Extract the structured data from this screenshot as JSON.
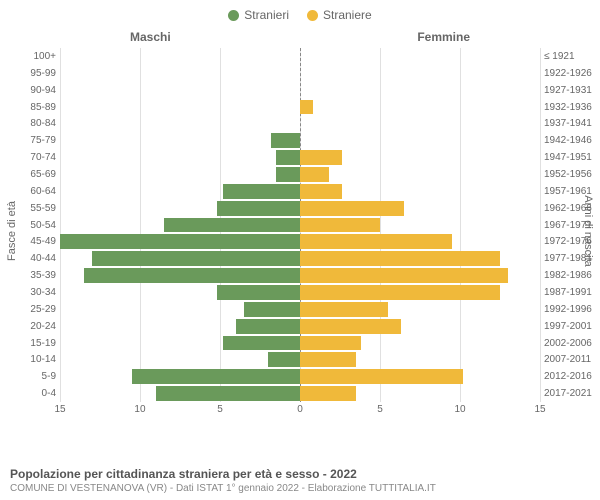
{
  "legend": {
    "male": {
      "label": "Stranieri",
      "color": "#6a9a5b"
    },
    "female": {
      "label": "Straniere",
      "color": "#f0b93a"
    }
  },
  "columns": {
    "left": "Maschi",
    "right": "Femmine"
  },
  "yaxis": {
    "left": "Fasce di età",
    "right": "Anni di nascita"
  },
  "xaxis": {
    "ticks": [
      15,
      10,
      5,
      0,
      5,
      10,
      15
    ],
    "max": 15
  },
  "grid_color": "#e0e0e0",
  "centerline_color": "#888888",
  "bg": "#ffffff",
  "age_bands": [
    {
      "age": "100+",
      "birth": "≤ 1921",
      "m": 0,
      "f": 0
    },
    {
      "age": "95-99",
      "birth": "1922-1926",
      "m": 0,
      "f": 0
    },
    {
      "age": "90-94",
      "birth": "1927-1931",
      "m": 0,
      "f": 0
    },
    {
      "age": "85-89",
      "birth": "1932-1936",
      "m": 0,
      "f": 0.8
    },
    {
      "age": "80-84",
      "birth": "1937-1941",
      "m": 0,
      "f": 0
    },
    {
      "age": "75-79",
      "birth": "1942-1946",
      "m": 1.8,
      "f": 0
    },
    {
      "age": "70-74",
      "birth": "1947-1951",
      "m": 1.5,
      "f": 2.6
    },
    {
      "age": "65-69",
      "birth": "1952-1956",
      "m": 1.5,
      "f": 1.8
    },
    {
      "age": "60-64",
      "birth": "1957-1961",
      "m": 4.8,
      "f": 2.6
    },
    {
      "age": "55-59",
      "birth": "1962-1966",
      "m": 5.2,
      "f": 6.5
    },
    {
      "age": "50-54",
      "birth": "1967-1971",
      "m": 8.5,
      "f": 5.0
    },
    {
      "age": "45-49",
      "birth": "1972-1976",
      "m": 15,
      "f": 9.5
    },
    {
      "age": "40-44",
      "birth": "1977-1981",
      "m": 13,
      "f": 12.5
    },
    {
      "age": "35-39",
      "birth": "1982-1986",
      "m": 13.5,
      "f": 13
    },
    {
      "age": "30-34",
      "birth": "1987-1991",
      "m": 5.2,
      "f": 12.5
    },
    {
      "age": "25-29",
      "birth": "1992-1996",
      "m": 3.5,
      "f": 5.5
    },
    {
      "age": "20-24",
      "birth": "1997-2001",
      "m": 4.0,
      "f": 6.3
    },
    {
      "age": "15-19",
      "birth": "2002-2006",
      "m": 4.8,
      "f": 3.8
    },
    {
      "age": "10-14",
      "birth": "2007-2011",
      "m": 2.0,
      "f": 3.5
    },
    {
      "age": "5-9",
      "birth": "2012-2016",
      "m": 10.5,
      "f": 10.2
    },
    {
      "age": "0-4",
      "birth": "2017-2021",
      "m": 9.0,
      "f": 3.5
    }
  ],
  "footer": {
    "title": "Popolazione per cittadinanza straniera per età e sesso - 2022",
    "subtitle": "COMUNE DI VESTENANOVA (VR) - Dati ISTAT 1° gennaio 2022 - Elaborazione TUTTITALIA.IT"
  }
}
